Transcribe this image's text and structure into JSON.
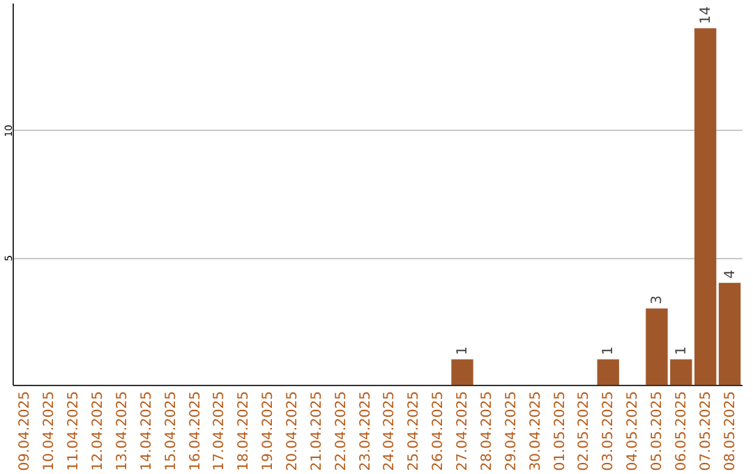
{
  "chart_data": {
    "type": "bar",
    "categories": [
      "09.04.2025",
      "10.04.2025",
      "11.04.2025",
      "12.04.2025",
      "13.04.2025",
      "14.04.2025",
      "15.04.2025",
      "16.04.2025",
      "17.04.2025",
      "18.04.2025",
      "19.04.2025",
      "20.04.2025",
      "21.04.2025",
      "22.04.2025",
      "23.04.2025",
      "24.04.2025",
      "25.04.2025",
      "26.04.2025",
      "27.04.2025",
      "28.04.2025",
      "29.04.2025",
      "30.04.2025",
      "01.05.2025",
      "02.05.2025",
      "03.05.2025",
      "04.05.2025",
      "05.05.2025",
      "06.05.2025",
      "07.05.2025",
      "08.05.2025"
    ],
    "values": [
      0,
      0,
      0,
      0,
      0,
      0,
      0,
      0,
      0,
      0,
      0,
      0,
      0,
      0,
      0,
      0,
      0,
      0,
      1,
      0,
      0,
      0,
      0,
      0,
      1,
      0,
      3,
      1,
      14,
      4
    ],
    "value_labels": [
      null,
      null,
      null,
      null,
      null,
      null,
      null,
      null,
      null,
      null,
      null,
      null,
      null,
      null,
      null,
      null,
      null,
      null,
      "1",
      null,
      null,
      null,
      null,
      null,
      "1",
      null,
      "3",
      "1",
      "14",
      "4"
    ],
    "color": "#a0582a",
    "ylim": [
      0,
      15
    ],
    "yticks": [
      5,
      10
    ],
    "grid": "y"
  }
}
